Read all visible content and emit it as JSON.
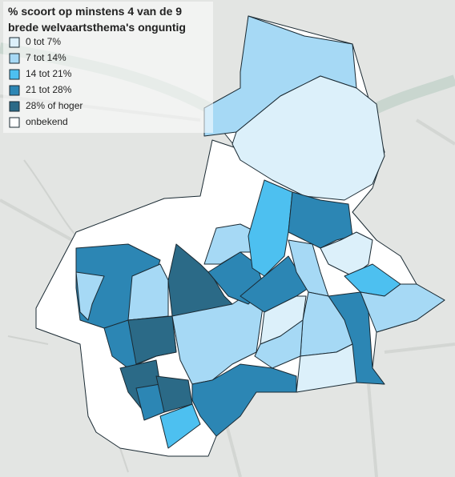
{
  "title": [
    "% scoort op minstens 4 van de 9",
    "brede welvaartsthema's onguntig"
  ],
  "legend": [
    {
      "label": "0 tot 7%",
      "color": "#dcf0fa"
    },
    {
      "label": "7 tot 14%",
      "color": "#a6d9f5"
    },
    {
      "label": "14 tot 21%",
      "color": "#4dc0f0"
    },
    {
      "label": "21 tot 28%",
      "color": "#2c86b4"
    },
    {
      "label": "28% of hoger",
      "color": "#2b6a87"
    },
    {
      "label": "onbekend",
      "color": "#ffffff"
    }
  ]
}
